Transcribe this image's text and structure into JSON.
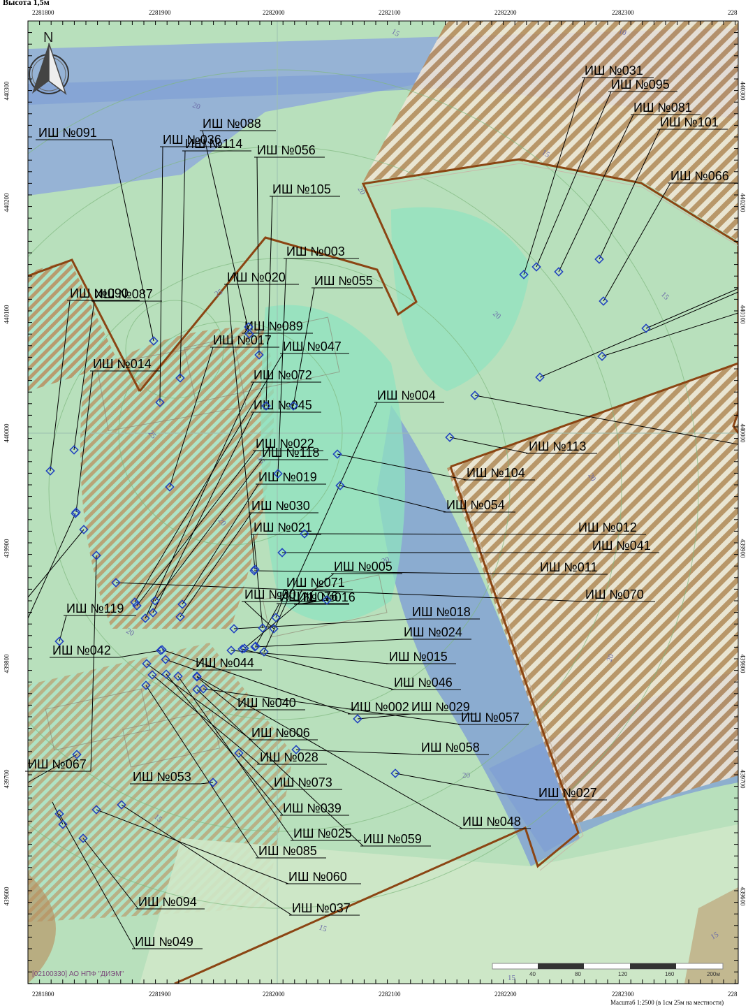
{
  "header": {
    "title": "Высота 1,5м"
  },
  "axes": {
    "top": [
      "2281800",
      "2281900",
      "2282000",
      "2282100",
      "2282200",
      "2282300",
      "228"
    ],
    "bottom": [
      "2281800",
      "2281900",
      "2282000",
      "2282100",
      "2282200",
      "2282300",
      "228"
    ],
    "left": [
      "440300",
      "440200",
      "440100",
      "440000",
      "439900",
      "439800",
      "439700",
      "439600"
    ],
    "right": [
      "440300",
      "440200",
      "440100",
      "440000",
      "439900",
      "439800",
      "439700",
      "439600"
    ]
  },
  "north_arrow": {
    "letter": "N"
  },
  "contours": [
    "15",
    "20",
    "15",
    "20",
    "25",
    "20",
    "25",
    "20",
    "20",
    "20",
    "15",
    "15",
    "20",
    "15",
    "15",
    "20",
    "10",
    "15",
    "20",
    "25"
  ],
  "labels": [
    "ИШ №091",
    "ИШ №088",
    "ИШ №036",
    "ИШ №114",
    "ИШ №056",
    "ИШ №105",
    "ИШ №003",
    "ИШ №020",
    "ИШ №055",
    "ИШ №090",
    "ИШ №087",
    "ИШ №089",
    "ИШ №017",
    "ИШ №047",
    "ИШ №014",
    "ИШ №072",
    "ИШ №045",
    "ИШ №004",
    "ИШ №022",
    "ИШ №118",
    "ИШ №019",
    "ИШ №030",
    "ИШ №021",
    "ИШ №005",
    "ИШ №071",
    "ИШ №007",
    "ИШ №076",
    "ИШ №016",
    "ИШ №119",
    "ИШ №042",
    "ИШ №044",
    "ИШ №040",
    "ИШ №006",
    "ИШ №028",
    "ИШ №067",
    "ИШ №053",
    "ИШ №073",
    "ИШ №039",
    "ИШ №025",
    "ИШ №085",
    "ИШ №059",
    "ИШ №060",
    "ИШ №037",
    "ИШ №094",
    "ИШ №049",
    "ИШ №031",
    "ИШ №095",
    "ИШ №081",
    "ИШ №101",
    "ИШ №066",
    "ИШ №113",
    "ИШ №104",
    "ИШ №054",
    "ИШ №012",
    "ИШ №041",
    "ИШ №011",
    "ИШ №070",
    "ИШ №018",
    "ИШ №024",
    "ИШ №015",
    "ИШ №046",
    "ИШ №002",
    "ИШ №029",
    "ИШ №057",
    "ИШ №058",
    "ИШ №027",
    "ИШ №048"
  ],
  "scale_bar": {
    "ticks": [
      "40",
      "80",
      "120",
      "160",
      "200м"
    ],
    "text": "Масштаб 1:2500 (в 1см 25м на местности)"
  },
  "credit": "[02100330] АО НПФ \"ДИЭМ\"",
  "colors": {
    "light_green": "#b8e0bc",
    "mint": "#8fe3c0",
    "brown": "#b88a5a",
    "blue": "#7f9fd4",
    "boundary": "#8b4513",
    "stripe_light": "#f4eadd"
  }
}
